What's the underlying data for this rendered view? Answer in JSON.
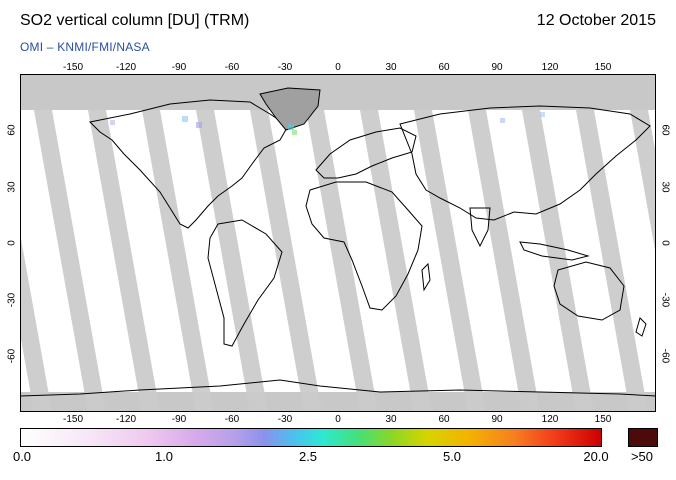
{
  "header": {
    "title": "SO2 vertical column [DU] (TRM)",
    "date": "12 October 2015",
    "source": "OMI  –  KNMI/FMI/NASA"
  },
  "map": {
    "lon_ticks": [
      "-150",
      "-120",
      "-90",
      "-60",
      "-30",
      "0",
      "30",
      "60",
      "90",
      "120",
      "150"
    ],
    "lat_ticks": [
      "60",
      "30",
      "0",
      "-30",
      "-60"
    ],
    "colors": {
      "land": "#ffffff",
      "nodata": "#c8c8c8",
      "coast": "#000000",
      "gap": "#a0a0a0"
    }
  },
  "colorbar": {
    "labels": [
      "0.0",
      "1.0",
      "2.5",
      "5.0",
      "20.0"
    ],
    "overflow_label": ">50",
    "overflow_color": "#4d0a0a"
  }
}
